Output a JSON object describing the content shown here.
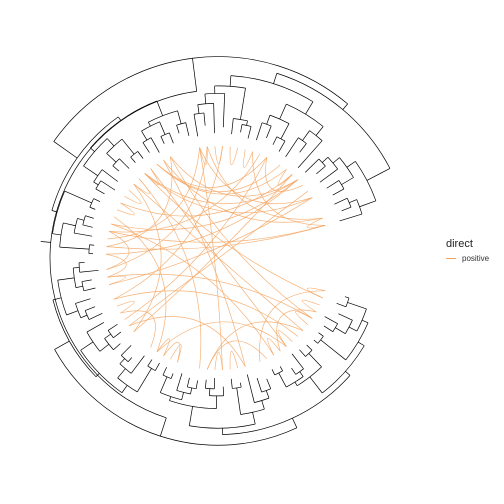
{
  "legend": {
    "title": "direct",
    "entries": [
      {
        "label": "positive",
        "color": "#f4a460"
      }
    ]
  },
  "colors": {
    "tree": "#000000",
    "links": "#f4a460"
  }
}
